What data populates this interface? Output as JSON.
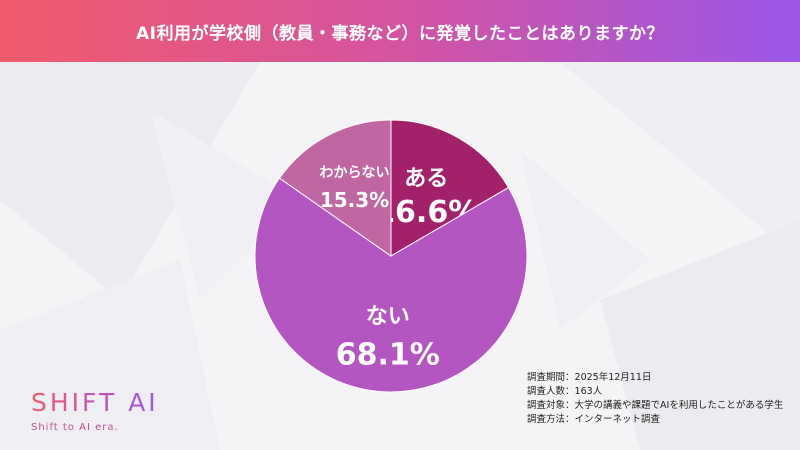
{
  "header": {
    "title": "AI利用が学校側（教員・事務など）に発覚したことはありますか？"
  },
  "chart_data": {
    "type": "pie",
    "title": "AI利用が学校側（教員・事務など）に発覚したことはありますか？",
    "slices": [
      {
        "label": "ある",
        "value": 16.6,
        "display": "16.6%",
        "color": "#a3216b"
      },
      {
        "label": "ない",
        "value": 68.1,
        "display": "68.1%",
        "color": "#b456c2"
      },
      {
        "label": "わからない",
        "value": 15.3,
        "display": "15.3%",
        "color": "#bf66a3"
      }
    ]
  },
  "logo": {
    "name": "SHIFT AI",
    "tagline": "Shift to AI era."
  },
  "survey_info": [
    {
      "key": "調査期間",
      "value": "2025年12月11日"
    },
    {
      "key": "調査人数",
      "value": "163人"
    },
    {
      "key": "調査対象",
      "value": "大学の講義や課題でAIを利用したことがある学生"
    },
    {
      "key": "調査方法",
      "value": "インターネット調査"
    }
  ]
}
